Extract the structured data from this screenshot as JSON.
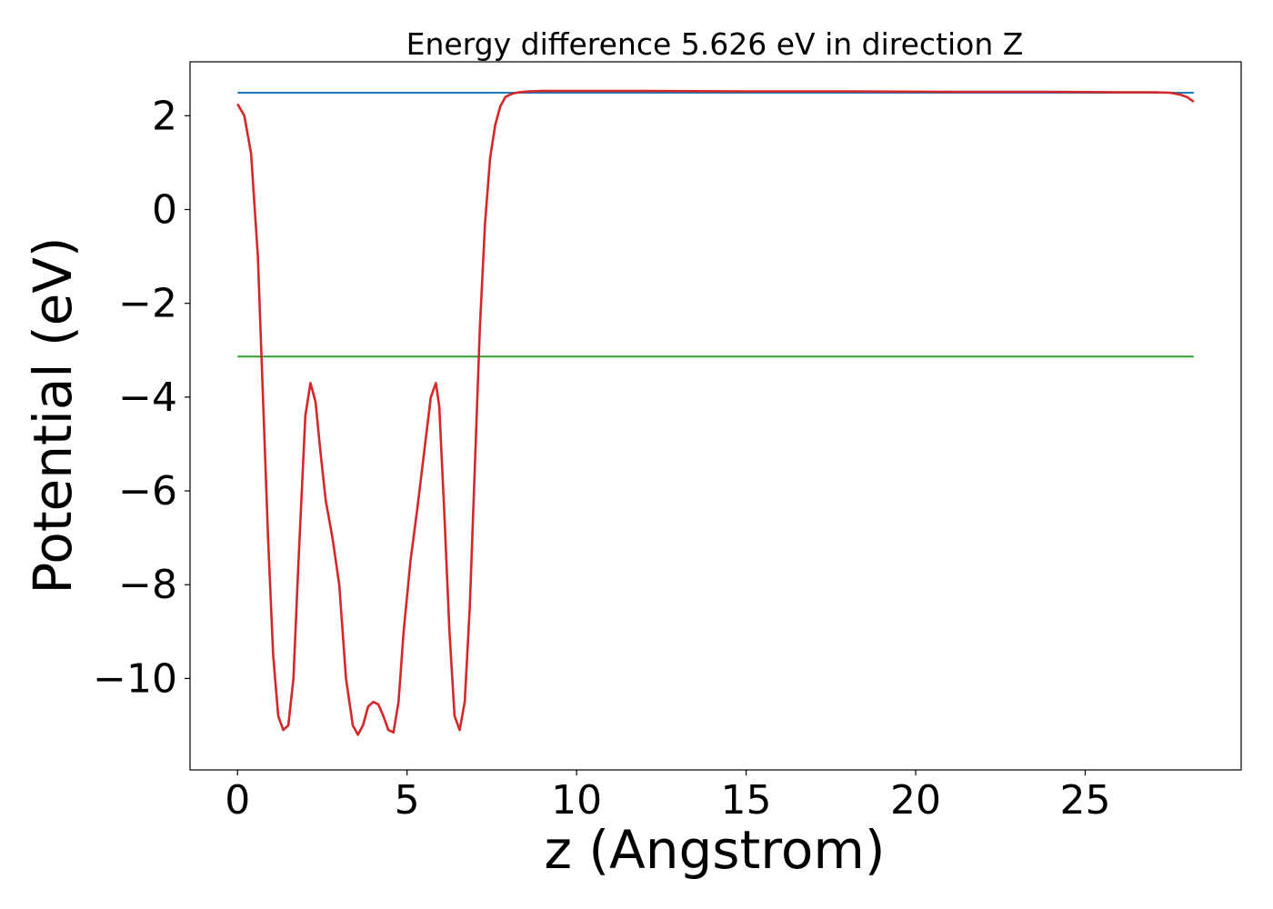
{
  "chart_data": {
    "type": "line",
    "title": "Energy difference 5.626 eV in direction Z",
    "xlabel": "z (Angstrom)",
    "ylabel": "Potential (eV)",
    "xlim": [
      -1.4,
      29.6
    ],
    "ylim": [
      -11.95,
      3.15
    ],
    "xticks": [
      0,
      5,
      10,
      15,
      20,
      25
    ],
    "xtick_labels": [
      "0",
      "5",
      "10",
      "15",
      "20",
      "25"
    ],
    "yticks": [
      2,
      0,
      -2,
      -4,
      -6,
      -8,
      -10
    ],
    "ytick_labels": [
      "2",
      "0",
      "−2",
      "−4",
      "−6",
      "−8",
      "−10"
    ],
    "grid": false,
    "colors": {
      "potential": "#d62728",
      "vacuum": "#1f77b4",
      "fermi": "#2ca02c"
    },
    "series": [
      {
        "key": "potential",
        "color": "#d62728",
        "x": [
          0.0,
          0.2,
          0.4,
          0.6,
          0.75,
          0.9,
          1.05,
          1.2,
          1.35,
          1.5,
          1.65,
          1.8,
          2.0,
          2.15,
          2.3,
          2.45,
          2.6,
          2.8,
          3.0,
          3.2,
          3.4,
          3.55,
          3.7,
          3.85,
          4.0,
          4.15,
          4.3,
          4.45,
          4.6,
          4.75,
          4.9,
          5.1,
          5.3,
          5.5,
          5.7,
          5.85,
          5.95,
          6.1,
          6.25,
          6.4,
          6.55,
          6.7,
          6.85,
          7.0,
          7.15,
          7.3,
          7.45,
          7.6,
          7.75,
          7.9,
          8.1,
          8.3,
          8.6,
          9.0,
          9.5,
          10.0,
          12.0,
          15.0,
          18.0,
          21.0,
          24.0,
          26.0,
          27.0,
          27.5,
          27.8,
          28.0,
          28.2
        ],
        "y": [
          2.25,
          2.0,
          1.2,
          -1.0,
          -4.0,
          -7.0,
          -9.5,
          -10.8,
          -11.1,
          -11.0,
          -10.0,
          -7.5,
          -4.4,
          -3.7,
          -4.1,
          -5.2,
          -6.2,
          -7.0,
          -8.0,
          -10.0,
          -11.0,
          -11.2,
          -11.0,
          -10.6,
          -10.5,
          -10.55,
          -10.8,
          -11.1,
          -11.15,
          -10.5,
          -9.0,
          -7.5,
          -6.4,
          -5.2,
          -4.0,
          -3.7,
          -4.2,
          -6.5,
          -9.0,
          -10.8,
          -11.1,
          -10.5,
          -8.5,
          -5.5,
          -2.5,
          -0.3,
          1.1,
          1.8,
          2.2,
          2.4,
          2.47,
          2.5,
          2.52,
          2.53,
          2.53,
          2.53,
          2.53,
          2.52,
          2.52,
          2.51,
          2.51,
          2.5,
          2.5,
          2.49,
          2.45,
          2.4,
          2.3
        ]
      },
      {
        "key": "vacuum",
        "color": "#1f77b4",
        "x": [
          0.0,
          28.2
        ],
        "y": [
          2.49,
          2.49
        ]
      },
      {
        "key": "fermi",
        "color": "#2ca02c",
        "x": [
          0.0,
          28.2
        ],
        "y": [
          -3.136,
          -3.136
        ]
      }
    ]
  }
}
